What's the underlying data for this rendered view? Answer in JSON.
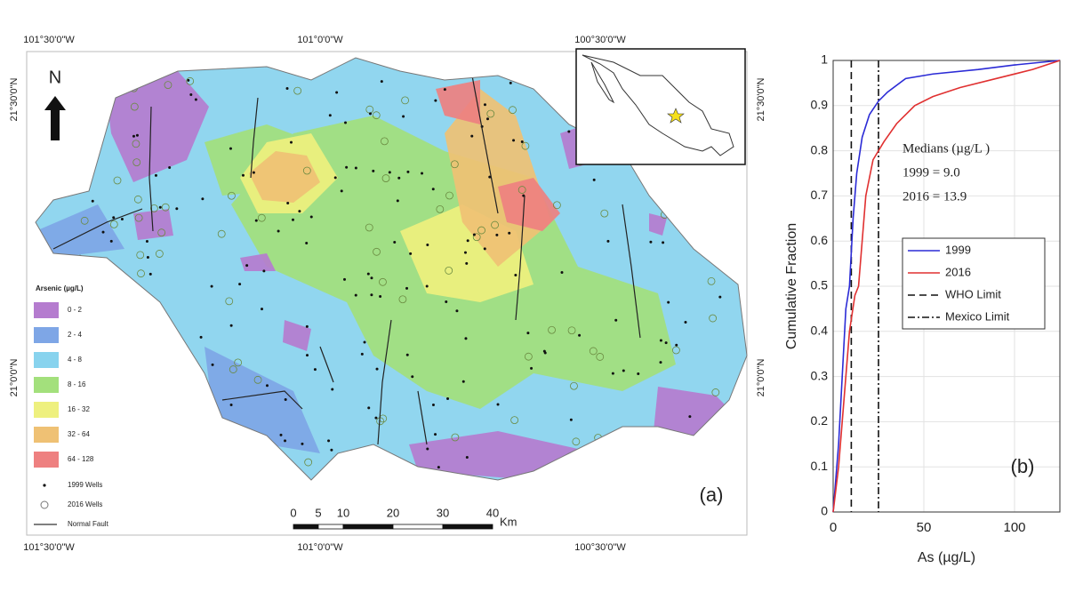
{
  "map": {
    "panel_label": "(a)",
    "north": "N",
    "lon_labels_top": [
      "101°30'0\"W",
      "101°0'0\"W",
      "100°30'0\"W"
    ],
    "lon_labels_bottom": [
      "101°30'0\"W",
      "101°0'0\"W",
      "100°30'0\"W"
    ],
    "lat_labels_left": [
      "21°30'0\"N",
      "21°0'0\"N"
    ],
    "lat_labels_right": [
      "21°30'0\"N",
      "21°0'0\"N"
    ],
    "legend": {
      "title": "Arsenic (µg/L)",
      "classes": [
        {
          "label": "0 - 2",
          "color": "#b57ccf"
        },
        {
          "label": "2 - 4",
          "color": "#7ea6e6"
        },
        {
          "label": "4 - 8",
          "color": "#88d3ee"
        },
        {
          "label": "8 - 16",
          "color": "#a3e07c"
        },
        {
          "label": "16 - 32",
          "color": "#eef07e"
        },
        {
          "label": "32 - 64",
          "color": "#efc174"
        },
        {
          "label": "64 - 128",
          "color": "#ee8080"
        }
      ],
      "symbols": [
        "1999 Wells",
        "2016 Wells",
        "Normal Fault"
      ]
    },
    "scale_bar": {
      "ticks": [
        0,
        5,
        10,
        20,
        30,
        40
      ],
      "unit": "Km"
    }
  },
  "chart_data": {
    "type": "line",
    "panel_label": "(b)",
    "xlabel": "As (µg/L)",
    "ylabel": "Cumulative Fraction",
    "xlim": [
      0,
      125
    ],
    "ylim": [
      0,
      1
    ],
    "xticks": [
      0,
      50,
      100
    ],
    "yticks": [
      0,
      0.1,
      0.2,
      0.3,
      0.4,
      0.5,
      0.6,
      0.7,
      0.8,
      0.9,
      1
    ],
    "grid": true,
    "series": [
      {
        "name": "1999",
        "color": "#2b2bd6",
        "x": [
          0,
          3,
          5,
          7,
          9,
          11,
          13,
          16,
          20,
          25,
          30,
          40,
          55,
          80,
          100,
          125
        ],
        "values": [
          0,
          0.15,
          0.3,
          0.45,
          0.5,
          0.65,
          0.75,
          0.83,
          0.88,
          0.91,
          0.93,
          0.96,
          0.97,
          0.98,
          0.99,
          1
        ]
      },
      {
        "name": "2016",
        "color": "#e03030",
        "x": [
          0,
          3,
          6,
          9,
          12,
          14,
          16,
          18,
          22,
          28,
          35,
          45,
          55,
          70,
          90,
          110,
          125
        ],
        "values": [
          0,
          0.1,
          0.25,
          0.4,
          0.48,
          0.5,
          0.6,
          0.7,
          0.78,
          0.82,
          0.86,
          0.9,
          0.92,
          0.94,
          0.96,
          0.98,
          1
        ]
      }
    ],
    "reference_lines": [
      {
        "name": "WHO Limit",
        "x": 10,
        "dash": "8,5"
      },
      {
        "name": "Mexico Limit",
        "x": 25,
        "dash": "8,3,2,3"
      }
    ],
    "annotations": [
      "Medians (µg/L )",
      "1999 = 9.0",
      "2016 = 13.9"
    ]
  }
}
